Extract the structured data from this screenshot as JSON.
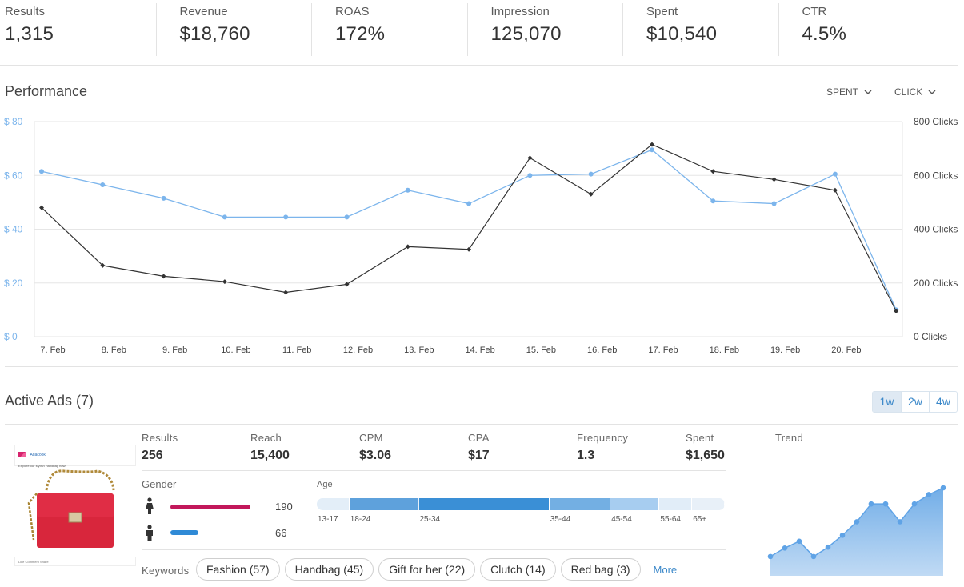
{
  "kpis": [
    {
      "label": "Results",
      "value": "1,315"
    },
    {
      "label": "Revenue",
      "value": "$18,760"
    },
    {
      "label": "ROAS",
      "value": "172%"
    },
    {
      "label": "Impression",
      "value": "125,070"
    },
    {
      "label": "Spent",
      "value": "$10,540"
    },
    {
      "label": "CTR",
      "value": "4.5%"
    }
  ],
  "performance": {
    "title": "Performance",
    "dropdown_spent": "SPENT",
    "dropdown_click": "CLICK"
  },
  "chart_data": {
    "type": "line",
    "categories": [
      "7. Feb",
      "8. Feb",
      "9. Feb",
      "10. Feb",
      "11. Feb",
      "12. Feb",
      "13. Feb",
      "14. Feb",
      "15. Feb",
      "16. Feb",
      "17. Feb",
      "18. Feb",
      "19. Feb",
      "20. Feb",
      ""
    ],
    "y_left": {
      "ticks": [
        "$ 0",
        "$ 20",
        "$ 40",
        "$ 60",
        "$ 80"
      ],
      "range": [
        0,
        80
      ]
    },
    "y_right": {
      "ticks": [
        "0 Clicks",
        "200 Clicks",
        "400 Clicks",
        "600 Clicks",
        "800 Clicks"
      ],
      "range": [
        0,
        800
      ]
    },
    "grid": true,
    "series": [
      {
        "axis": "left",
        "color": "#7cb5ec",
        "values": [
          61.5,
          56.5,
          51.5,
          44.5,
          44.5,
          44.5,
          54.5,
          49.5,
          60,
          60.5,
          69.5,
          50.5,
          49.5,
          60.5,
          10
        ]
      },
      {
        "axis": "right",
        "color": "#333333",
        "values": [
          480,
          265,
          225,
          205,
          165,
          195,
          335,
          325,
          665,
          530,
          715,
          615,
          585,
          545,
          95
        ]
      }
    ]
  },
  "active_ads": {
    "title": "Active Ads (7)",
    "ranges": [
      "1w",
      "2w",
      "4w"
    ],
    "ad": {
      "brand": "Adacook",
      "sponsored": "Sponsored",
      "caption": "Explore our stylish Handbag now!",
      "footer": "Like  Comment  Share"
    },
    "metrics": [
      {
        "label": "Results",
        "value": "256"
      },
      {
        "label": "Reach",
        "value": "15,400"
      },
      {
        "label": "CPM",
        "value": "$3.06"
      },
      {
        "label": "CPA",
        "value": "$17"
      },
      {
        "label": "Frequency",
        "value": "1.3"
      },
      {
        "label": "Spent",
        "value": "$1,650"
      }
    ],
    "gender": {
      "title": "Gender",
      "female": {
        "count": "190",
        "color": "#c2185b"
      },
      "male": {
        "count": "66",
        "color": "#2f8ad6"
      }
    },
    "age": {
      "title": "Age",
      "groups": [
        {
          "label": "13-17",
          "share": 8,
          "color": "#e3eef8"
        },
        {
          "label": "18-24",
          "share": 17,
          "color": "#5ea1dc"
        },
        {
          "label": "25-34",
          "share": 32,
          "color": "#3a8fd6"
        },
        {
          "label": "35-44",
          "share": 15,
          "color": "#73afe3"
        },
        {
          "label": "45-54",
          "share": 12,
          "color": "#a7cdf0"
        },
        {
          "label": "55-64",
          "share": 8,
          "color": "#e1edf8"
        },
        {
          "label": "65+",
          "share": 8,
          "color": "#e8f0f8"
        }
      ]
    },
    "keywords_title": "Keywords",
    "keywords": [
      "Fashion (57)",
      "Handbag (45)",
      "Gift for her (22)",
      "Clutch (14)",
      "Red bag (3)"
    ],
    "more_label": "More",
    "trend_title": "Trend",
    "trend_values": [
      2,
      12,
      20,
      2,
      13,
      27,
      43,
      64,
      64,
      43,
      64,
      75,
      83
    ]
  }
}
